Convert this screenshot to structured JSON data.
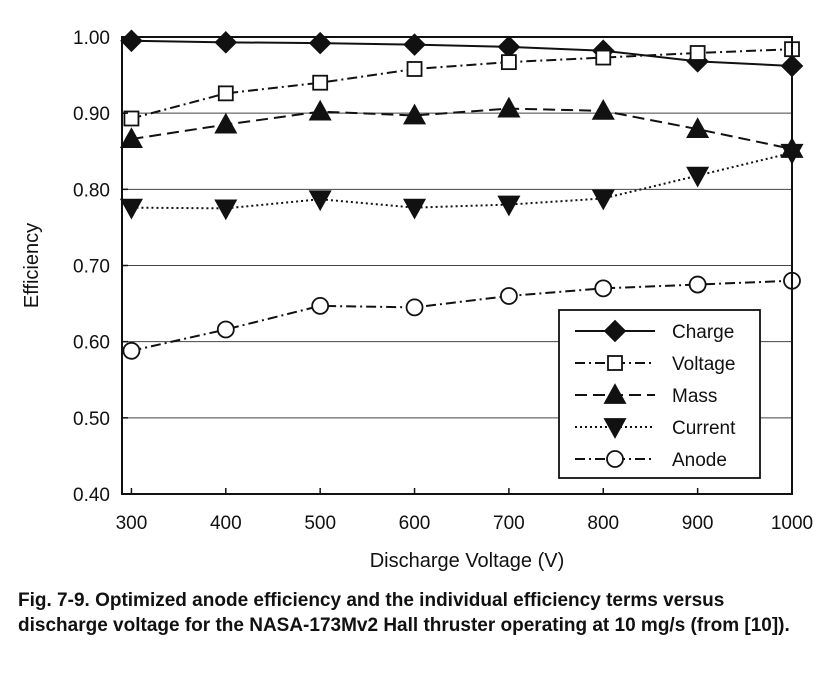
{
  "chart_data": {
    "type": "line",
    "x": [
      300,
      400,
      500,
      600,
      700,
      800,
      900,
      1000
    ],
    "xlabel": "Discharge Voltage (V)",
    "ylabel": "Efficiency",
    "xlim": [
      290,
      1000
    ],
    "ylim": [
      0.4,
      1.0
    ],
    "x_ticks": [
      "300",
      "400",
      "500",
      "600",
      "700",
      "800",
      "900",
      "1000"
    ],
    "y_ticks": [
      "0.40",
      "0.50",
      "0.60",
      "0.70",
      "0.80",
      "0.90",
      "1.00"
    ],
    "grid": "horizontal",
    "legend_position": "bottom-right",
    "series": [
      {
        "name": "Charge",
        "marker": "diamond-filled",
        "line": "solid",
        "values": [
          0.995,
          0.993,
          0.992,
          0.99,
          0.987,
          0.982,
          0.968,
          0.962
        ]
      },
      {
        "name": "Voltage",
        "marker": "square-open",
        "line": "dash-dot",
        "values": [
          0.893,
          0.926,
          0.94,
          0.958,
          0.967,
          0.973,
          0.979,
          0.984
        ]
      },
      {
        "name": "Mass",
        "marker": "triangle-up-filled",
        "line": "dashed",
        "values": [
          0.866,
          0.885,
          0.902,
          0.897,
          0.906,
          0.903,
          0.879,
          0.853
        ]
      },
      {
        "name": "Current",
        "marker": "triangle-down-filled",
        "line": "dotted",
        "values": [
          0.776,
          0.775,
          0.787,
          0.776,
          0.78,
          0.788,
          0.818,
          0.848
        ]
      },
      {
        "name": "Anode",
        "marker": "circle-open",
        "line": "dash-dot",
        "values": [
          0.588,
          0.616,
          0.647,
          0.645,
          0.66,
          0.67,
          0.675,
          0.68
        ]
      }
    ]
  },
  "caption": "Fig. 7-9. Optimized anode efficiency and the individual efficiency terms versus discharge voltage for the NASA-173Mv2 Hall thruster operating at 10 mg/s (from [10])."
}
